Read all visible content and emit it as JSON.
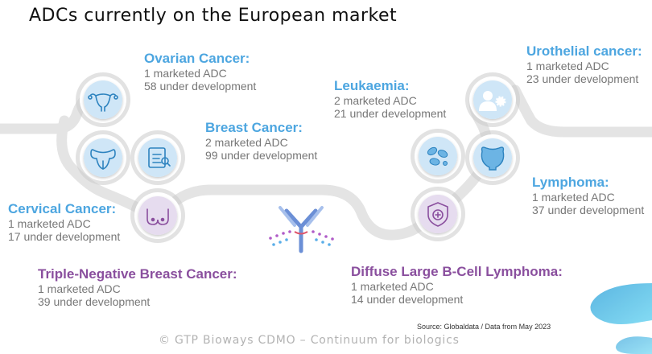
{
  "title": "ADCs currently on the European market",
  "colors": {
    "blue": "#4da6e0",
    "purple": "#8a4f9e",
    "gray_text": "#777777",
    "track": "#e3e3e3",
    "icon_blue_fill": "#cfe6f7",
    "icon_purple_fill": "#e6dcef"
  },
  "cancers": {
    "ovarian": {
      "name": "Ovarian Cancer:",
      "marketed": "1 marketed ADC",
      "development": "58 under development",
      "icon": "uterus-icon"
    },
    "breast": {
      "name": "Breast Cancer:",
      "marketed": "2 marketed ADC",
      "development": "99 under development",
      "icon": "breast-scan-icon"
    },
    "cervical": {
      "name": "Cervical Cancer:",
      "marketed": "1 marketed ADC",
      "development": "17 under development",
      "icon": "cervix-icon"
    },
    "tnbc": {
      "name": "Triple-Negative Breast Cancer:",
      "marketed": "1 marketed ADC",
      "development": "39 under development",
      "icon": "breast-icon"
    },
    "leukaemia": {
      "name": "Leukaemia:",
      "marketed": "2 marketed ADC",
      "development": "21 under development",
      "icon": "blood-cells-icon"
    },
    "urothelial": {
      "name": "Urothelial cancer:",
      "marketed": "1 marketed ADC",
      "development": "23 under development",
      "icon": "patient-virus-icon"
    },
    "lymphoma": {
      "name": "Lymphoma:",
      "marketed": "1 marketed ADC",
      "development": "37 under development",
      "icon": "bladder-icon"
    },
    "dlbcl": {
      "name": "Diffuse Large B-Cell Lymphoma:",
      "marketed": "1 marketed ADC",
      "development": "14 under development",
      "icon": "shield-plus-icon"
    }
  },
  "center_icon": "antibody-drug-conjugate-icon",
  "source": "Source: Globaldata / Data from May 2023",
  "copyright": "© GTP Bioways CDMO – Continuum for biologics",
  "logo": "gtp-bioways-logo"
}
